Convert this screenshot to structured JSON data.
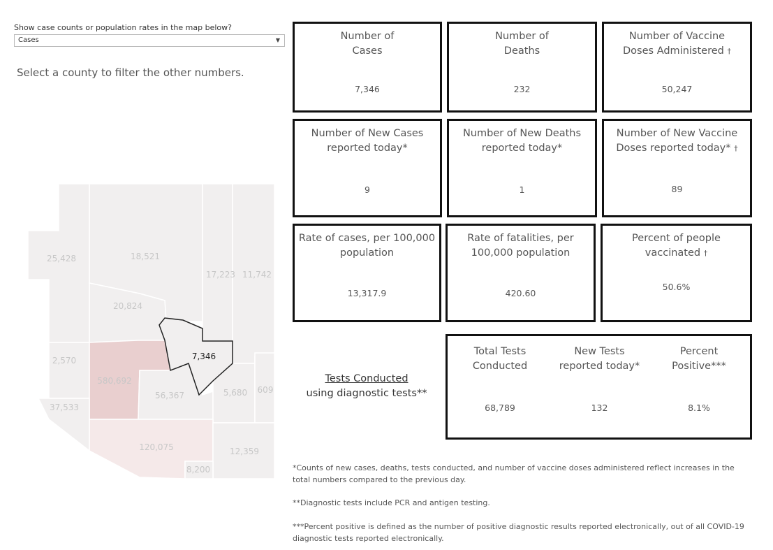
{
  "filter": {
    "label": "Show case counts or population rates in the map below?",
    "selected": "Cases"
  },
  "hint": "Select a county to filter the other numbers.",
  "cards": {
    "cases": {
      "label": "Number of\nCases",
      "value": "7,346"
    },
    "deaths": {
      "label": "Number of\nDeaths",
      "value": "232"
    },
    "vaccine_doses": {
      "label": "Number of Vaccine\nDoses Administered",
      "dagger": "†",
      "value": "50,247"
    },
    "new_cases": {
      "label": "Number of New Cases\nreported today*",
      "value": "9"
    },
    "new_deaths": {
      "label": "Number of New Deaths\nreported today*",
      "value": "1"
    },
    "new_vaccine": {
      "label": "Number of New Vaccine\nDoses reported today*",
      "dagger": "†",
      "value": "89"
    },
    "case_rate": {
      "label": "Rate of cases, per 100,000\npopulation",
      "value": "13,317.9"
    },
    "fatality_rate": {
      "label": "Rate of fatalities, per\n100,000 population",
      "value": "420.60"
    },
    "pct_vaccinated": {
      "label": "Percent of people\nvaccinated",
      "dagger": "†",
      "value": "50.6%"
    }
  },
  "tests": {
    "title": "Tests Conducted",
    "subtitle": "using diagnostic tests**",
    "total": {
      "label": "Total Tests\nConducted",
      "value": "68,789"
    },
    "new": {
      "label": "New Tests\nreported today*",
      "value": "132"
    },
    "positive": {
      "label": "Percent\nPositive***",
      "value": "8.1%"
    }
  },
  "map": {
    "selected_county_value": "7,346",
    "county_values": [
      "25,428",
      "18,521",
      "17,223",
      "11,742",
      "20,824",
      "2,570",
      "580,692",
      "56,367",
      "5,680",
      "609",
      "37,533",
      "120,075",
      "12,359",
      "8,200"
    ],
    "colors": {
      "base": "#f1efef",
      "border": "#ffffff",
      "highlight": "#e9cfcf",
      "light_highlight": "#f5e9e9",
      "selected_outline": "#222222",
      "label": "#c7c7c7"
    }
  },
  "footnotes": [
    "*Counts of new cases, deaths, tests conducted, and number of vaccine doses administered reflect increases in the total numbers compared to the previous day.",
    "**Diagnostic tests include PCR and antigen testing.",
    "***Percent positive is defined as the number of positive diagnostic results reported electronically, out of all COVID-19 diagnostic tests reported electronically."
  ]
}
